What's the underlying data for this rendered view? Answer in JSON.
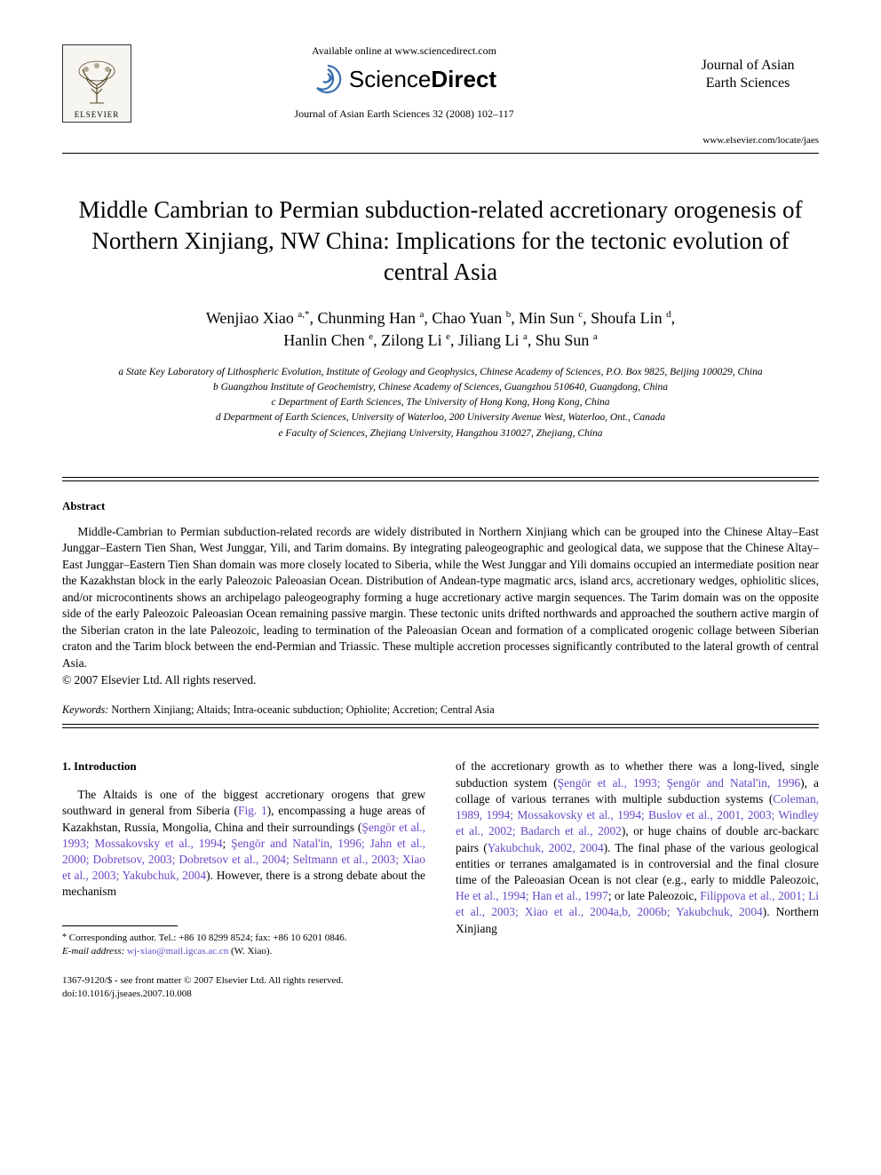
{
  "header": {
    "available_online": "Available online at www.sciencedirect.com",
    "sciencedirect": {
      "prefix": "Science",
      "suffix": "Direct"
    },
    "journal_ref": "Journal of Asian Earth Sciences 32 (2008) 102–117",
    "elsevier_label": "ELSEVIER",
    "journal_name_line1": "Journal of Asian",
    "journal_name_line2": "Earth Sciences",
    "journal_url": "www.elsevier.com/locate/jaes"
  },
  "title": "Middle Cambrian to Permian subduction-related accretionary orogenesis of Northern Xinjiang, NW China: Implications for the tectonic evolution of central Asia",
  "authors_html": "Wenjiao Xiao <sup>a,*</sup>, Chunming Han <sup>a</sup>, Chao Yuan <sup>b</sup>, Min Sun <sup>c</sup>, Shoufa Lin <sup>d</sup>,<br>Hanlin Chen <sup>e</sup>, Zilong Li <sup>e</sup>, Jiliang Li <sup>a</sup>, Shu Sun <sup>a</sup>",
  "affiliations": [
    "a State Key Laboratory of Lithospheric Evolution, Institute of Geology and Geophysics, Chinese Academy of Sciences, P.O. Box 9825, Beijing 100029, China",
    "b Guangzhou Institute of Geochemistry, Chinese Academy of Sciences, Guangzhou 510640, Guangdong, China",
    "c Department of Earth Sciences, The University of Hong Kong, Hong Kong, China",
    "d Department of Earth Sciences, University of Waterloo, 200 University Avenue West, Waterloo, Ont., Canada",
    "e Faculty of Sciences, Zhejiang University, Hangzhou 310027, Zhejiang, China"
  ],
  "abstract": {
    "heading": "Abstract",
    "body": "Middle-Cambrian to Permian subduction-related records are widely distributed in Northern Xinjiang which can be grouped into the Chinese Altay–East Junggar–Eastern Tien Shan, West Junggar, Yili, and Tarim domains. By integrating paleogeographic and geological data, we suppose that the Chinese Altay–East Junggar–Eastern Tien Shan domain was more closely located to Siberia, while the West Junggar and Yili domains occupied an intermediate position near the Kazakhstan block in the early Paleozoic Paleoasian Ocean. Distribution of Andean-type magmatic arcs, island arcs, accretionary wedges, ophiolitic slices, and/or microcontinents shows an archipelago paleogeography forming a huge accretionary active margin sequences. The Tarim domain was on the opposite side of the early Paleozoic Paleoasian Ocean remaining passive margin. These tectonic units drifted northwards and approached the southern active margin of the Siberian craton in the late Paleozoic, leading to termination of the Paleoasian Ocean and formation of a complicated orogenic collage between Siberian craton and the Tarim block between the end-Permian and Triassic. These multiple accretion processes significantly contributed to the lateral growth of central Asia.",
    "copyright": "© 2007 Elsevier Ltd. All rights reserved."
  },
  "keywords": {
    "label": "Keywords:",
    "text": " Northern Xinjiang; Altaids; Intra-oceanic subduction; Ophiolite; Accretion; Central Asia"
  },
  "section1": {
    "heading": "1. Introduction",
    "left_para_html": "The Altaids is one of the biggest accretionary orogens that grew southward in general from Siberia (<span class=\"ref-link\">Fig. 1</span>), encompassing a huge areas of Kazakhstan, Russia, Mongolia, China and their surroundings (<span class=\"ref-link\">Şengör et al., 1993; Mossakovsky et al., 1994</span>; <span class=\"ref-link\">Şengör and Natal'in, 1996; Jahn et al., 2000; Dobretsov, 2003; Dobretsov et al., 2004; Seltmann et al., 2003; Xiao et al., 2003; Yakubchuk, 2004</span>). However, there is a strong debate about the mechanism",
    "right_para_html": "of the accretionary growth as to whether there was a long-lived, single subduction system (<span class=\"ref-link\">Şengör et al., 1993; Şengör and Natal'in, 1996</span>), a collage of various terranes with multiple subduction systems (<span class=\"ref-link\">Coleman, 1989, 1994; Mossakovsky et al., 1994; Buslov et al., 2001, 2003; Windley et al., 2002; Badarch et al., 2002</span>), or huge chains of double arc-backarc pairs (<span class=\"ref-link\">Yakubchuk, 2002, 2004</span>). The final phase of the various geological entities or terranes amalgamated is in controversial and the final closure time of the Paleoasian Ocean is not clear (e.g., early to middle Paleozoic, <span class=\"ref-link\">He et al., 1994; Han et al., 1997</span>; or late Paleozoic, <span class=\"ref-link\">Filippova et al., 2001; Li et al., 2003; Xiao et al., 2004a,b, 2006b; Yakubchuk, 2004</span>). Northern Xinjiang"
  },
  "footnote": {
    "corresponding": "Corresponding author. Tel.: +86 10 8299 8524; fax: +86 10 6201 0846.",
    "email_label": "E-mail address:",
    "email": "wj-xiao@mail.igcas.ac.cn",
    "email_who": "(W. Xiao)."
  },
  "bottom": {
    "line1": "1367-9120/$ - see front matter © 2007 Elsevier Ltd. All rights reserved.",
    "line2": "doi:10.1016/j.jseaes.2007.10.008"
  },
  "colors": {
    "ref_link": "#6a48c8",
    "text": "#000000",
    "bg": "#ffffff",
    "sd_swirl": "#3a6fb0"
  }
}
